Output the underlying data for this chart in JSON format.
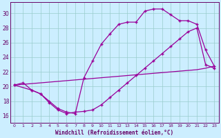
{
  "xlabel": "Windchill (Refroidissement éolien,°C)",
  "bg_color": "#cceeff",
  "line_color": "#990099",
  "grid_color": "#99cccc",
  "axis_color": "#660066",
  "text_color": "#660066",
  "xlim": [
    -0.5,
    23.5
  ],
  "ylim": [
    15.0,
    31.5
  ],
  "xticks": [
    0,
    1,
    2,
    3,
    4,
    5,
    6,
    7,
    8,
    9,
    10,
    11,
    12,
    13,
    14,
    15,
    16,
    17,
    18,
    19,
    20,
    21,
    22,
    23
  ],
  "yticks": [
    16,
    18,
    20,
    22,
    24,
    26,
    28,
    30
  ],
  "line1_x": [
    0,
    1,
    2,
    3,
    4,
    5,
    6,
    7,
    8,
    9,
    10,
    11,
    12,
    13,
    14,
    15,
    16,
    17,
    18,
    19,
    20,
    21,
    22,
    23
  ],
  "line1_y": [
    20.2,
    20.5,
    19.5,
    19.0,
    17.8,
    16.8,
    16.3,
    16.5,
    16.6,
    16.8,
    17.5,
    18.5,
    19.5,
    20.5,
    21.5,
    22.5,
    23.5,
    24.5,
    25.5,
    26.5,
    27.5,
    28.0,
    23.0,
    22.5
  ],
  "line2_x": [
    0,
    2,
    3,
    4,
    5,
    6,
    7,
    8,
    9,
    10,
    11,
    12,
    13,
    14,
    15,
    16,
    17,
    18,
    19,
    20,
    21,
    22,
    23
  ],
  "line2_y": [
    20.2,
    19.5,
    19.0,
    18.0,
    17.0,
    16.5,
    16.3,
    21.2,
    23.5,
    25.8,
    27.2,
    28.5,
    28.8,
    28.8,
    30.3,
    30.6,
    30.6,
    29.8,
    29.0,
    29.0,
    28.5,
    25.0,
    22.8
  ],
  "line3_x": [
    0,
    1,
    2,
    3,
    4,
    5,
    6,
    7,
    8,
    9,
    10,
    11,
    12,
    13,
    14,
    15,
    16,
    17,
    18,
    19,
    20,
    21,
    22,
    23
  ],
  "line3_y": [
    20.2,
    20.3,
    20.4,
    20.5,
    20.6,
    20.7,
    20.8,
    20.9,
    21.0,
    21.1,
    21.2,
    21.3,
    21.4,
    21.5,
    21.6,
    21.7,
    21.8,
    21.9,
    22.0,
    22.1,
    22.2,
    22.3,
    22.5,
    22.8
  ]
}
